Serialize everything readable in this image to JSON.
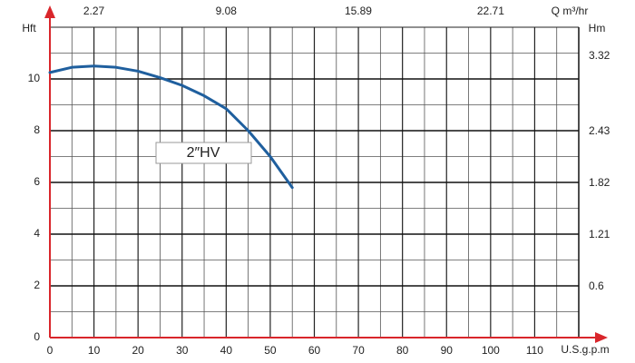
{
  "chart_data": {
    "type": "line",
    "x_label": "U.S.g.p.m",
    "y_label": "Hft",
    "y2_label": "Hm",
    "x2_label": "Q m³/hr",
    "annotation": "2″HV",
    "x": [
      0,
      5,
      10,
      15,
      20,
      25,
      30,
      35,
      40,
      45,
      50,
      55
    ],
    "series": [
      {
        "name": "2″HV",
        "color": "#1f5f9e",
        "values": [
          10.25,
          10.45,
          10.5,
          10.45,
          10.3,
          10.05,
          9.75,
          9.35,
          8.85,
          8.0,
          7.0,
          5.8
        ]
      }
    ],
    "xlim": [
      0,
      120
    ],
    "xticks": [
      0,
      10,
      20,
      30,
      40,
      50,
      60,
      70,
      80,
      90,
      100,
      110
    ],
    "ylim": [
      0,
      12
    ],
    "yticks": [
      0,
      2,
      4,
      6,
      8,
      10
    ],
    "x2lim": [
      0,
      27.25
    ],
    "x2ticks": [
      2.27,
      9.08,
      15.89,
      22.71
    ],
    "y2lim": [
      0,
      3.66
    ],
    "y2ticks": [
      0.6,
      1.21,
      1.82,
      2.43,
      3.32
    ],
    "grid": true,
    "axis_color": "#d9262b"
  }
}
